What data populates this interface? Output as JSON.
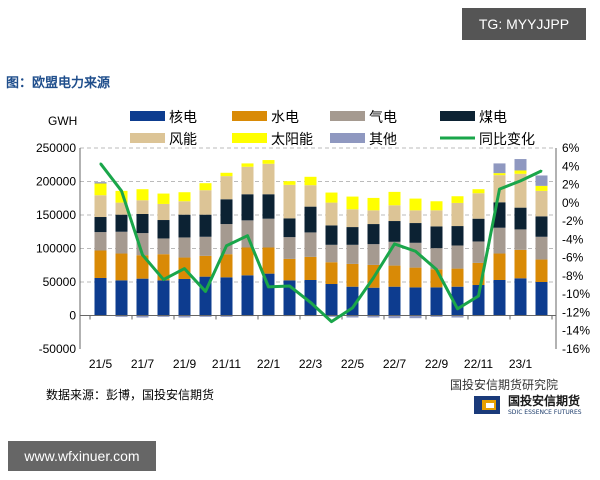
{
  "watermark_top": "TG: MYYJJPP",
  "watermark_bottom": "www.wfxinuer.com",
  "title": "图：欧盟电力来源",
  "source": "数据来源：彭博，国投安信期货",
  "logo": {
    "text_a": "国投安信期货研究院",
    "text_b": "国投安信期货",
    "text_c": "SDIC ESSENCE FUTURES"
  },
  "chart_data": {
    "type": "bar",
    "stacked": true,
    "ylabel": "GWH",
    "ylim": [
      -50000,
      250000
    ],
    "yticks": [
      "250000",
      "200000",
      "150000",
      "100000",
      "50000",
      "0",
      "-50000"
    ],
    "y2lim": [
      -16,
      6
    ],
    "y2ticks": [
      "6%",
      "4%",
      "2%",
      "0%",
      "-2%",
      "-4%",
      "-6%",
      "-8%",
      "-10%",
      "-12%",
      "-14%",
      "-16%"
    ],
    "grid": "horizontal dashed",
    "legend_position": "top",
    "categories": [
      "21/5",
      "21/6",
      "21/7",
      "21/8",
      "21/9",
      "21/10",
      "21/11",
      "21/12",
      "22/1",
      "22/2",
      "22/3",
      "22/4",
      "22/5",
      "22/6",
      "22/7",
      "22/8",
      "22/9",
      "22/10",
      "22/11",
      "22/12",
      "23/1",
      "23/2"
    ],
    "xtick_labels": [
      "21/5",
      "21/7",
      "21/9",
      "21/11",
      "22/1",
      "22/3",
      "22/5",
      "22/7",
      "22/9",
      "22/11",
      "23/1"
    ],
    "series": [
      {
        "name": "核电",
        "color": "#0d3c8f",
        "values": [
          56000,
          52500,
          55000,
          52500,
          54500,
          58000,
          57000,
          60000,
          62500,
          52500,
          53000,
          47000,
          43000,
          41500,
          43000,
          42000,
          42000,
          43000,
          45500,
          53000,
          55500,
          50000
        ]
      },
      {
        "name": "水电",
        "color": "#d98a06",
        "values": [
          41000,
          40000,
          35000,
          39000,
          32000,
          31000,
          34500,
          41500,
          39000,
          32000,
          34500,
          32500,
          34000,
          34000,
          31500,
          29500,
          27000,
          27000,
          33000,
          39500,
          42500,
          33500
        ]
      },
      {
        "name": "气电",
        "color": "#a59a90",
        "values": [
          27500,
          32500,
          33000,
          23500,
          30000,
          28500,
          45000,
          40500,
          43000,
          32500,
          36500,
          26000,
          28500,
          31000,
          35500,
          37000,
          31500,
          34500,
          32000,
          38500,
          30500,
          34000
        ]
      },
      {
        "name": "煤电",
        "color": "#0c2233",
        "values": [
          22500,
          25500,
          28500,
          27500,
          34000,
          33000,
          37000,
          39000,
          36500,
          28000,
          38500,
          29000,
          26500,
          30000,
          31000,
          29500,
          32500,
          29000,
          34000,
          38000,
          32500,
          30500
        ]
      },
      {
        "name": "风能",
        "color": "#dcc496",
        "values": [
          32500,
          18000,
          20500,
          24000,
          20000,
          36500,
          34500,
          41000,
          45500,
          50000,
          32000,
          34000,
          26500,
          20500,
          23500,
          19000,
          24000,
          34500,
          38000,
          40500,
          50500,
          38000
        ]
      },
      {
        "name": "太阳能",
        "color": "#ffff00",
        "values": [
          17500,
          17500,
          16500,
          15500,
          13500,
          10500,
          5000,
          5000,
          5500,
          5500,
          12500,
          15000,
          19000,
          18500,
          20000,
          17500,
          13500,
          10000,
          6000,
          3000,
          5000,
          7500
        ]
      },
      {
        "name": "其他",
        "color": "#8f98c0",
        "values": [
          2000,
          -2000,
          -3000,
          -2000,
          -3000,
          -2000,
          -2000,
          -1000,
          -1000,
          -1000,
          -1000,
          -2000,
          -3000,
          -3000,
          -4000,
          -4000,
          -2000,
          -3000,
          -1000,
          14500,
          17000,
          15500
        ]
      }
    ],
    "line_series": {
      "name": "同比变化",
      "color": "#1aa64a",
      "axis": "right",
      "values": [
        4.3,
        1.3,
        -5.7,
        -8.4,
        -7.2,
        -9.7,
        -4.7,
        -3.6,
        -9.2,
        -9.1,
        -10.9,
        -13.0,
        -11.5,
        -8.2,
        -4.5,
        -5.3,
        -7.3,
        -11.6,
        -10.2,
        1.5,
        2.4,
        3.5
      ]
    }
  }
}
